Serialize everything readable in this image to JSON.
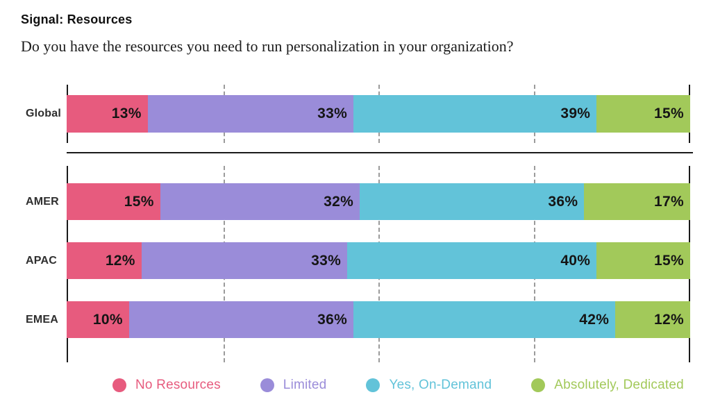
{
  "header": {
    "title": "Signal: Resources",
    "question": "Do you have the resources you need to run personalization in your organization?"
  },
  "chart_data": {
    "type": "bar",
    "orientation": "horizontal",
    "stacked": true,
    "unit": "%",
    "xlim": [
      0,
      100
    ],
    "gridlines_percent": [
      25,
      50,
      75
    ],
    "grid_style": "dashed",
    "legend_position": "bottom",
    "series_names": [
      "No Resources",
      "Limited",
      "Yes, On-Demand",
      "Absolutely, Dedicated"
    ],
    "colors": [
      "#E75B7E",
      "#9A8CD9",
      "#62C3D9",
      "#A2C95A"
    ],
    "groups": [
      {
        "name": "global",
        "rows": [
          {
            "label": "Global",
            "values": [
              13,
              33,
              39,
              15
            ]
          }
        ]
      },
      {
        "name": "regions",
        "rows": [
          {
            "label": "AMER",
            "values": [
              15,
              32,
              36,
              17
            ]
          },
          {
            "label": "APAC",
            "values": [
              12,
              33,
              40,
              15
            ]
          },
          {
            "label": "EMEA",
            "values": [
              10,
              36,
              42,
              12
            ]
          }
        ]
      }
    ],
    "legend": [
      {
        "label": "No Resources",
        "color": "#E75B7E"
      },
      {
        "label": "Limited",
        "color": "#9A8CD9"
      },
      {
        "label": "Yes, On-Demand",
        "color": "#62C3D9"
      },
      {
        "label": "Absolutely, Dedicated",
        "color": "#A2C95A"
      }
    ]
  }
}
